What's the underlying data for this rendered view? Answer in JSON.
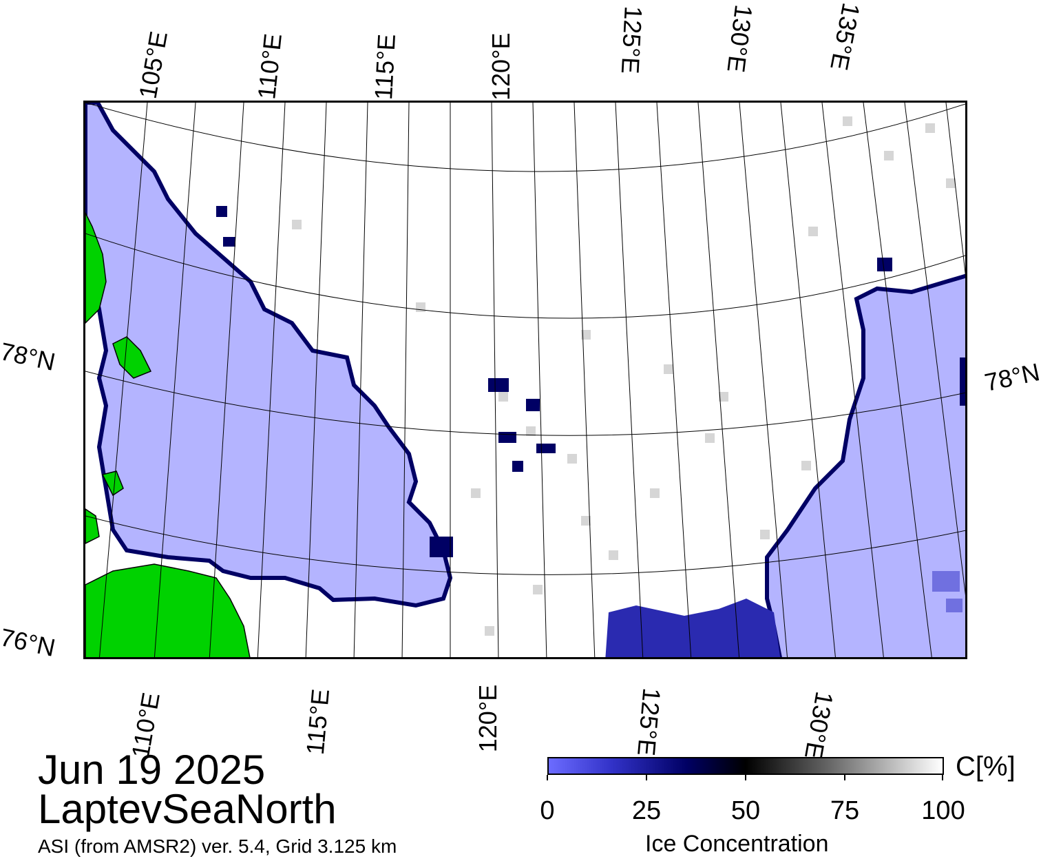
{
  "map": {
    "top_lon_labels": [
      "105°E",
      "110°E",
      "115°E",
      "120°E",
      "125°E",
      "130°E",
      "135°E"
    ],
    "bottom_lon_labels": [
      "110°E",
      "115°E",
      "120°E",
      "125°E",
      "130°E"
    ],
    "left_lat_labels": [
      "78°N",
      "76°N"
    ],
    "right_lat_labels": [
      "78°N"
    ],
    "colors": {
      "open_water": "#b4b4ff",
      "land": "#00d200",
      "coast": "#808080",
      "ice": "#ffffff",
      "edge": "#000064"
    }
  },
  "title": {
    "date": "Jun 19 2025",
    "region": "LaptevSeaNorth",
    "source": "ASI (from AMSR2) ver. 5.4,  Grid 3.125 km"
  },
  "colorbar": {
    "unit": "C[%]",
    "ticks": [
      "0",
      "25",
      "50",
      "75",
      "100"
    ],
    "title": "Ice Concentration",
    "range": [
      0,
      100
    ]
  }
}
